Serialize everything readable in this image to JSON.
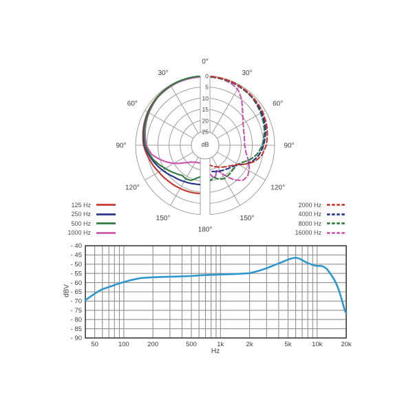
{
  "labels": {
    "polar_unit": "dB",
    "response_ylabel": "dBV",
    "response_xlabel": "Hz"
  },
  "colors": {
    "red": "#c43a31",
    "navy": "#28368a",
    "green": "#317d3f",
    "magenta": "#ca58ae",
    "response_line": "#2e97cd",
    "polar_grid": "#9c9c9c",
    "response_grid": "#8f8f8f",
    "response_border": "#3a3a3a",
    "text": "#3d3d3d"
  },
  "legend_left": {
    "items": [
      {
        "label": "125 Hz",
        "color": "#c43a31",
        "style": "solid"
      },
      {
        "label": "250 Hz",
        "color": "#28368a",
        "style": "solid"
      },
      {
        "label": "500 Hz",
        "color": "#317d3f",
        "style": "solid"
      },
      {
        "label": "1000 Hz",
        "color": "#ca58ae",
        "style": "solid"
      }
    ]
  },
  "legend_right": {
    "items": [
      {
        "label": "2000 Hz",
        "color": "#c43a31",
        "style": "dashed"
      },
      {
        "label": "4000 Hz",
        "color": "#28368a",
        "style": "dashed"
      },
      {
        "label": "8000 Hz",
        "color": "#317d3f",
        "style": "dashed"
      },
      {
        "label": "16000 Hz",
        "color": "#ca58ae",
        "style": "dashed"
      }
    ]
  },
  "chart_data": [
    {
      "type": "polar",
      "title": "",
      "unit": "dB",
      "radial_ticks": [
        0,
        5,
        10,
        15,
        20,
        25
      ],
      "radial_max_db": 25,
      "angle_tick_labels": [
        "0°",
        "30°",
        "60°",
        "90°",
        "120°",
        "150°",
        "180°"
      ],
      "angle_ticks_deg": [
        0,
        30,
        60,
        90,
        120,
        150,
        180
      ],
      "series": [
        {
          "name": "125 Hz",
          "color": "#c43a31",
          "dash": false,
          "side": "left",
          "z": 1,
          "points_deg_db": [
            [
              0,
              0.2
            ],
            [
              25,
              0.2
            ],
            [
              45,
              0.7
            ],
            [
              60,
              1.5
            ],
            [
              75,
              2.5
            ],
            [
              90,
              3.6
            ],
            [
              105,
              5.5
            ],
            [
              120,
              7.2
            ],
            [
              135,
              8.2
            ],
            [
              150,
              8.8
            ],
            [
              165,
              9.2
            ],
            [
              180,
              9.5
            ]
          ]
        },
        {
          "name": "250 Hz",
          "color": "#28368a",
          "dash": false,
          "side": "left",
          "z": 2,
          "points_deg_db": [
            [
              0,
              0.3
            ],
            [
              25,
              0.3
            ],
            [
              45,
              0.9
            ],
            [
              60,
              1.7
            ],
            [
              75,
              2.8
            ],
            [
              90,
              4.0
            ],
            [
              105,
              6.5
            ],
            [
              120,
              9.0
            ],
            [
              135,
              11.2
            ],
            [
              150,
              12.4
            ],
            [
              165,
              13.2
            ],
            [
              180,
              13.6
            ]
          ]
        },
        {
          "name": "500 Hz",
          "color": "#317d3f",
          "dash": false,
          "side": "left",
          "z": 4,
          "points_deg_db": [
            [
              0,
              0.1
            ],
            [
              25,
              0.2
            ],
            [
              45,
              0.8
            ],
            [
              60,
              1.8
            ],
            [
              75,
              3.0
            ],
            [
              90,
              4.3
            ],
            [
              105,
              7.0
            ],
            [
              120,
              10.5
            ],
            [
              133,
              12.8
            ],
            [
              143,
              14.2
            ],
            [
              150,
              13.8
            ],
            [
              158,
              14.2
            ],
            [
              165,
              15.8
            ],
            [
              172,
              17.0
            ],
            [
              180,
              17.4
            ]
          ]
        },
        {
          "name": "1000 Hz",
          "color": "#ca58ae",
          "dash": false,
          "side": "left",
          "z": 3,
          "points_deg_db": [
            [
              0,
              0.5
            ],
            [
              25,
              0.5
            ],
            [
              45,
              1.0
            ],
            [
              60,
              2.1
            ],
            [
              75,
              3.4
            ],
            [
              90,
              4.8
            ],
            [
              100,
              7.0
            ],
            [
              110,
              11.0
            ],
            [
              120,
              15.0
            ],
            [
              130,
              19.0
            ],
            [
              140,
              21.4
            ],
            [
              150,
              22.4
            ],
            [
              165,
              23.0
            ],
            [
              180,
              23.4
            ]
          ]
        },
        {
          "name": "2000 Hz",
          "color": "#c43a31",
          "dash": true,
          "side": "right",
          "z": 4,
          "points_deg_db": [
            [
              0,
              0.2
            ],
            [
              25,
              0.35
            ],
            [
              45,
              0.8
            ],
            [
              60,
              1.4
            ],
            [
              75,
              2.4
            ],
            [
              90,
              3.8
            ],
            [
              100,
              5.4
            ],
            [
              108,
              7.8
            ],
            [
              115,
              11.2
            ],
            [
              122,
              14.8
            ],
            [
              131,
              17.0
            ],
            [
              141,
              18.6
            ],
            [
              152,
              20.2
            ],
            [
              163,
              21.6
            ],
            [
              172,
              22.6
            ],
            [
              180,
              23.2
            ]
          ]
        },
        {
          "name": "4000 Hz",
          "color": "#28368a",
          "dash": true,
          "side": "right",
          "z": 3,
          "points_deg_db": [
            [
              0,
              0.3
            ],
            [
              25,
              0.5
            ],
            [
              45,
              1.0
            ],
            [
              60,
              2.0
            ],
            [
              75,
              3.1
            ],
            [
              90,
              5.0
            ],
            [
              100,
              6.6
            ],
            [
              108,
              8.6
            ],
            [
              114,
              10.8
            ],
            [
              121,
              14.4
            ],
            [
              129,
              15.8
            ],
            [
              140,
              17.0
            ],
            [
              152,
              18.0
            ],
            [
              165,
              19.0
            ],
            [
              180,
              19.6
            ]
          ]
        },
        {
          "name": "8000 Hz",
          "color": "#317d3f",
          "dash": true,
          "side": "right",
          "z": 2,
          "points_deg_db": [
            [
              0,
              0.4
            ],
            [
              25,
              0.6
            ],
            [
              45,
              1.2
            ],
            [
              60,
              2.4
            ],
            [
              75,
              3.7
            ],
            [
              90,
              5.6
            ],
            [
              100,
              7.6
            ],
            [
              107,
              9.8
            ],
            [
              114,
              12.6
            ],
            [
              121,
              14.4
            ],
            [
              131,
              14.6
            ],
            [
              141,
              14.2
            ],
            [
              150,
              13.9
            ],
            [
              158,
              14.8
            ],
            [
              165,
              16.3
            ],
            [
              173,
              14.9
            ],
            [
              180,
              13.2
            ]
          ]
        },
        {
          "name": "16000 Hz",
          "color": "#ca58ae",
          "dash": true,
          "side": "right",
          "z": 1,
          "points_deg_db": [
            [
              0,
              0.4
            ],
            [
              15,
              0.6
            ],
            [
              24,
              1.2
            ],
            [
              31,
              2.4
            ],
            [
              38,
              4.8
            ],
            [
              45,
              7.6
            ],
            [
              52,
              9.8
            ],
            [
              60,
              11.6
            ],
            [
              70,
              12.8
            ],
            [
              80,
              13.3
            ],
            [
              90,
              13.5
            ],
            [
              100,
              12.6
            ],
            [
              110,
              10.6
            ],
            [
              118,
              8.8
            ],
            [
              126,
              7.6
            ],
            [
              133,
              8.1
            ],
            [
              140,
              11.0
            ],
            [
              146,
              14.6
            ],
            [
              151,
              17.4
            ],
            [
              156,
              18.8
            ],
            [
              161,
              16.6
            ],
            [
              166,
              16.2
            ],
            [
              171,
              18.8
            ],
            [
              175,
              21.2
            ],
            [
              180,
              22.4
            ]
          ]
        }
      ]
    },
    {
      "type": "line",
      "title": "",
      "x_scale": "log",
      "xlabel": "Hz",
      "ylabel": "dBV",
      "xlim": [
        40,
        20000
      ],
      "ylim": [
        -90,
        -40
      ],
      "yticks": [
        -40,
        -45,
        -50,
        -55,
        -60,
        -65,
        -70,
        -75,
        -80,
        -85,
        -90
      ],
      "ytick_labels": [
        "- 40",
        "- 45",
        "- 50",
        "- 55",
        "- 60",
        "- 65",
        "- 70",
        "- 75",
        "- 80",
        "- 85",
        "- 90"
      ],
      "xticks": [
        {
          "value": 50,
          "label": "50"
        },
        {
          "value": 100,
          "label": "100"
        },
        {
          "value": 200,
          "label": "200"
        },
        {
          "value": 500,
          "label": "500"
        },
        {
          "value": 1000,
          "label": "1k"
        },
        {
          "value": 2000,
          "label": "2k"
        },
        {
          "value": 5000,
          "label": "5k"
        },
        {
          "value": 10000,
          "label": "10k"
        },
        {
          "value": 20000,
          "label": "20k"
        }
      ],
      "gridlines_x": [
        50,
        60,
        70,
        80,
        90,
        100,
        200,
        300,
        400,
        500,
        600,
        700,
        800,
        900,
        1000,
        2000,
        3000,
        4000,
        5000,
        6000,
        7000,
        8000,
        9000,
        10000,
        20000
      ],
      "grid": true,
      "series": [
        {
          "name": "frequency response",
          "color": "#2e97cd",
          "points": [
            [
              40,
              -69.5
            ],
            [
              45,
              -67.6
            ],
            [
              50,
              -66.0
            ],
            [
              55,
              -64.6
            ],
            [
              60,
              -63.6
            ],
            [
              70,
              -62.4
            ],
            [
              80,
              -61.3
            ],
            [
              90,
              -60.4
            ],
            [
              100,
              -59.7
            ],
            [
              120,
              -58.6
            ],
            [
              150,
              -57.5
            ],
            [
              200,
              -57.1
            ],
            [
              250,
              -56.9
            ],
            [
              300,
              -56.8
            ],
            [
              400,
              -56.6
            ],
            [
              500,
              -56.4
            ],
            [
              600,
              -56.1
            ],
            [
              700,
              -55.9
            ],
            [
              800,
              -55.8
            ],
            [
              1000,
              -55.6
            ],
            [
              1300,
              -55.4
            ],
            [
              1600,
              -55.2
            ],
            [
              2000,
              -54.9
            ],
            [
              2500,
              -53.6
            ],
            [
              3000,
              -52.2
            ],
            [
              3500,
              -50.8
            ],
            [
              4000,
              -49.6
            ],
            [
              4500,
              -48.5
            ],
            [
              5000,
              -47.5
            ],
            [
              5500,
              -46.8
            ],
            [
              6000,
              -46.5
            ],
            [
              6500,
              -46.9
            ],
            [
              7000,
              -47.8
            ],
            [
              7500,
              -48.7
            ],
            [
              8000,
              -49.4
            ],
            [
              9000,
              -50.4
            ],
            [
              10000,
              -51.0
            ],
            [
              10700,
              -50.9
            ],
            [
              11500,
              -51.2
            ],
            [
              12500,
              -52.4
            ],
            [
              13500,
              -54.6
            ],
            [
              15000,
              -58.3
            ],
            [
              16000,
              -61.3
            ],
            [
              17000,
              -65.0
            ],
            [
              18000,
              -69.3
            ],
            [
              19000,
              -73.8
            ],
            [
              19600,
              -75.9
            ],
            [
              20000,
              -76.3
            ]
          ]
        }
      ]
    }
  ]
}
